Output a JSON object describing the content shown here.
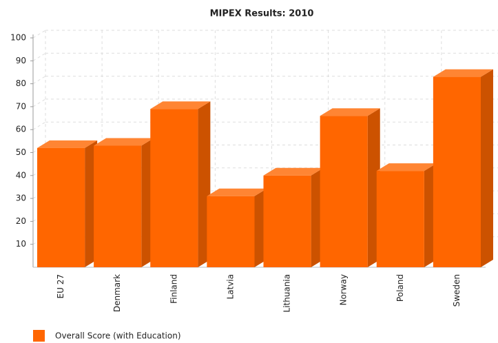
{
  "chart_data": {
    "type": "bar3d",
    "title": "MIPEX Results: 2010",
    "categories": [
      "EU 27",
      "Denmark",
      "Finland",
      "Latvia",
      "Lithuania",
      "Norway",
      "Poland",
      "Sweden"
    ],
    "series": [
      {
        "name": "Overall Score (with Education)",
        "color": "#ff6600",
        "values": [
          52,
          53,
          69,
          31,
          40,
          66,
          42,
          83
        ]
      }
    ],
    "ylim": [
      0,
      100
    ],
    "yticks": [
      10,
      20,
      30,
      40,
      50,
      60,
      70,
      80,
      90,
      100
    ],
    "grid": true
  }
}
